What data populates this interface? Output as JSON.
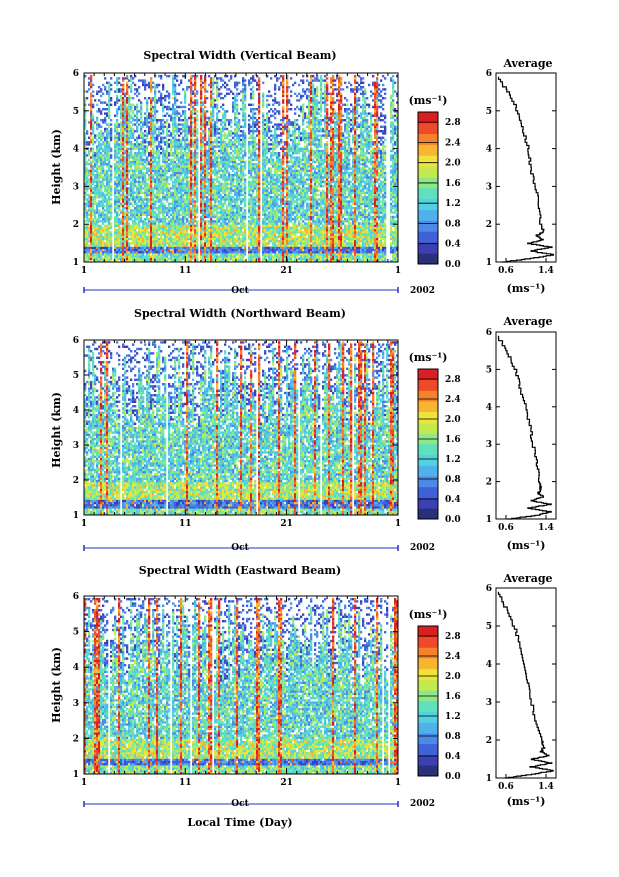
{
  "figure": {
    "xlabel": "Local Time (Day)",
    "month_label": "Oct",
    "year_label": "2002",
    "ylabel": "Height (km)",
    "avg_title": "Average",
    "unit_label": "(ms⁻¹)",
    "colorbar_ticks": [
      "2.8",
      "2.4",
      "2.0",
      "1.6",
      "1.2",
      "0.8",
      "0.4",
      "0.0"
    ]
  },
  "chart_data": [
    {
      "type": "heatmap",
      "title": "Spectral Width (Vertical Beam)",
      "xlabel": "Local Time (Day)",
      "ylabel": "Height (km)",
      "x_ticks": [
        "1",
        "11",
        "21",
        "1"
      ],
      "y_ticks": [
        "1",
        "2",
        "3",
        "4",
        "5",
        "6"
      ],
      "ylim": [
        1,
        6
      ],
      "colorbar": {
        "unit": "ms-1",
        "range": [
          0.0,
          3.0
        ],
        "ticks": [
          0.0,
          0.4,
          0.8,
          1.2,
          1.6,
          2.0,
          2.4,
          2.8
        ]
      },
      "average_profile": {
        "title": "Average",
        "xlim": [
          0.4,
          1.6
        ],
        "x_ticks": [
          "0.6",
          "1.4"
        ],
        "height": [
          1.0,
          1.1,
          1.2,
          1.3,
          1.4,
          1.5,
          1.6,
          1.7,
          1.8,
          2.0,
          2.5,
          3.0,
          3.5,
          4.0,
          4.5,
          5.0,
          5.5,
          5.9
        ],
        "width": [
          0.5,
          1.1,
          1.55,
          1.1,
          1.5,
          1.05,
          1.35,
          1.2,
          1.35,
          1.3,
          1.25,
          1.2,
          1.1,
          1.05,
          0.95,
          0.85,
          0.65,
          0.45
        ]
      }
    },
    {
      "type": "heatmap",
      "title": "Spectral Width (Northward Beam)",
      "xlabel": "Local Time (Day)",
      "ylabel": "Height (km)",
      "x_ticks": [
        "1",
        "11",
        "21",
        "1"
      ],
      "y_ticks": [
        "1",
        "2",
        "3",
        "4",
        "5",
        "6"
      ],
      "ylim": [
        1,
        6
      ],
      "colorbar": {
        "unit": "ms-1",
        "range": [
          0.0,
          3.0
        ],
        "ticks": [
          0.0,
          0.4,
          0.8,
          1.2,
          1.6,
          2.0,
          2.4,
          2.8
        ]
      },
      "average_profile": {
        "title": "Average",
        "xlim": [
          0.4,
          1.6
        ],
        "x_ticks": [
          "0.6",
          "1.4"
        ],
        "height": [
          1.0,
          1.1,
          1.2,
          1.3,
          1.4,
          1.5,
          1.6,
          1.7,
          1.8,
          2.0,
          2.5,
          3.0,
          3.5,
          4.0,
          4.5,
          5.0,
          5.5,
          5.9
        ],
        "width": [
          0.6,
          1.2,
          1.5,
          1.05,
          1.5,
          1.1,
          1.35,
          1.25,
          1.3,
          1.28,
          1.22,
          1.15,
          1.08,
          1.0,
          0.9,
          0.8,
          0.62,
          0.45
        ]
      }
    },
    {
      "type": "heatmap",
      "title": "Spectral Width (Eastward Beam)",
      "xlabel": "Local Time (Day)",
      "ylabel": "Height (km)",
      "x_ticks": [
        "1",
        "11",
        "21",
        "1"
      ],
      "y_ticks": [
        "1",
        "2",
        "3",
        "4",
        "5",
        "6"
      ],
      "ylim": [
        1,
        6
      ],
      "colorbar": {
        "unit": "ms-1",
        "range": [
          0.0,
          3.0
        ],
        "ticks": [
          0.0,
          0.4,
          0.8,
          1.2,
          1.6,
          2.0,
          2.4,
          2.8
        ]
      },
      "average_profile": {
        "title": "Average",
        "xlim": [
          0.4,
          1.6
        ],
        "x_ticks": [
          "0.6",
          "1.4"
        ],
        "height": [
          1.0,
          1.1,
          1.2,
          1.3,
          1.4,
          1.5,
          1.6,
          1.7,
          1.8,
          2.0,
          2.5,
          3.0,
          3.5,
          4.0,
          4.5,
          5.0,
          5.5,
          5.9
        ],
        "width": [
          0.55,
          1.1,
          1.55,
          1.1,
          1.5,
          1.1,
          1.45,
          1.3,
          1.35,
          1.32,
          1.2,
          1.12,
          1.05,
          0.98,
          0.9,
          0.78,
          0.6,
          0.45
        ]
      }
    }
  ],
  "colors": {
    "colormap": [
      "#2a2f7a",
      "#3d3fb5",
      "#3f62d8",
      "#4b8ae6",
      "#4fb2ea",
      "#53d1e0",
      "#5fe0bf",
      "#8ee88a",
      "#c4ea4f",
      "#eee43c",
      "#f8b532",
      "#f6802c",
      "#ee4a2a",
      "#d82020"
    ],
    "axis_blue": "#2233cc"
  }
}
